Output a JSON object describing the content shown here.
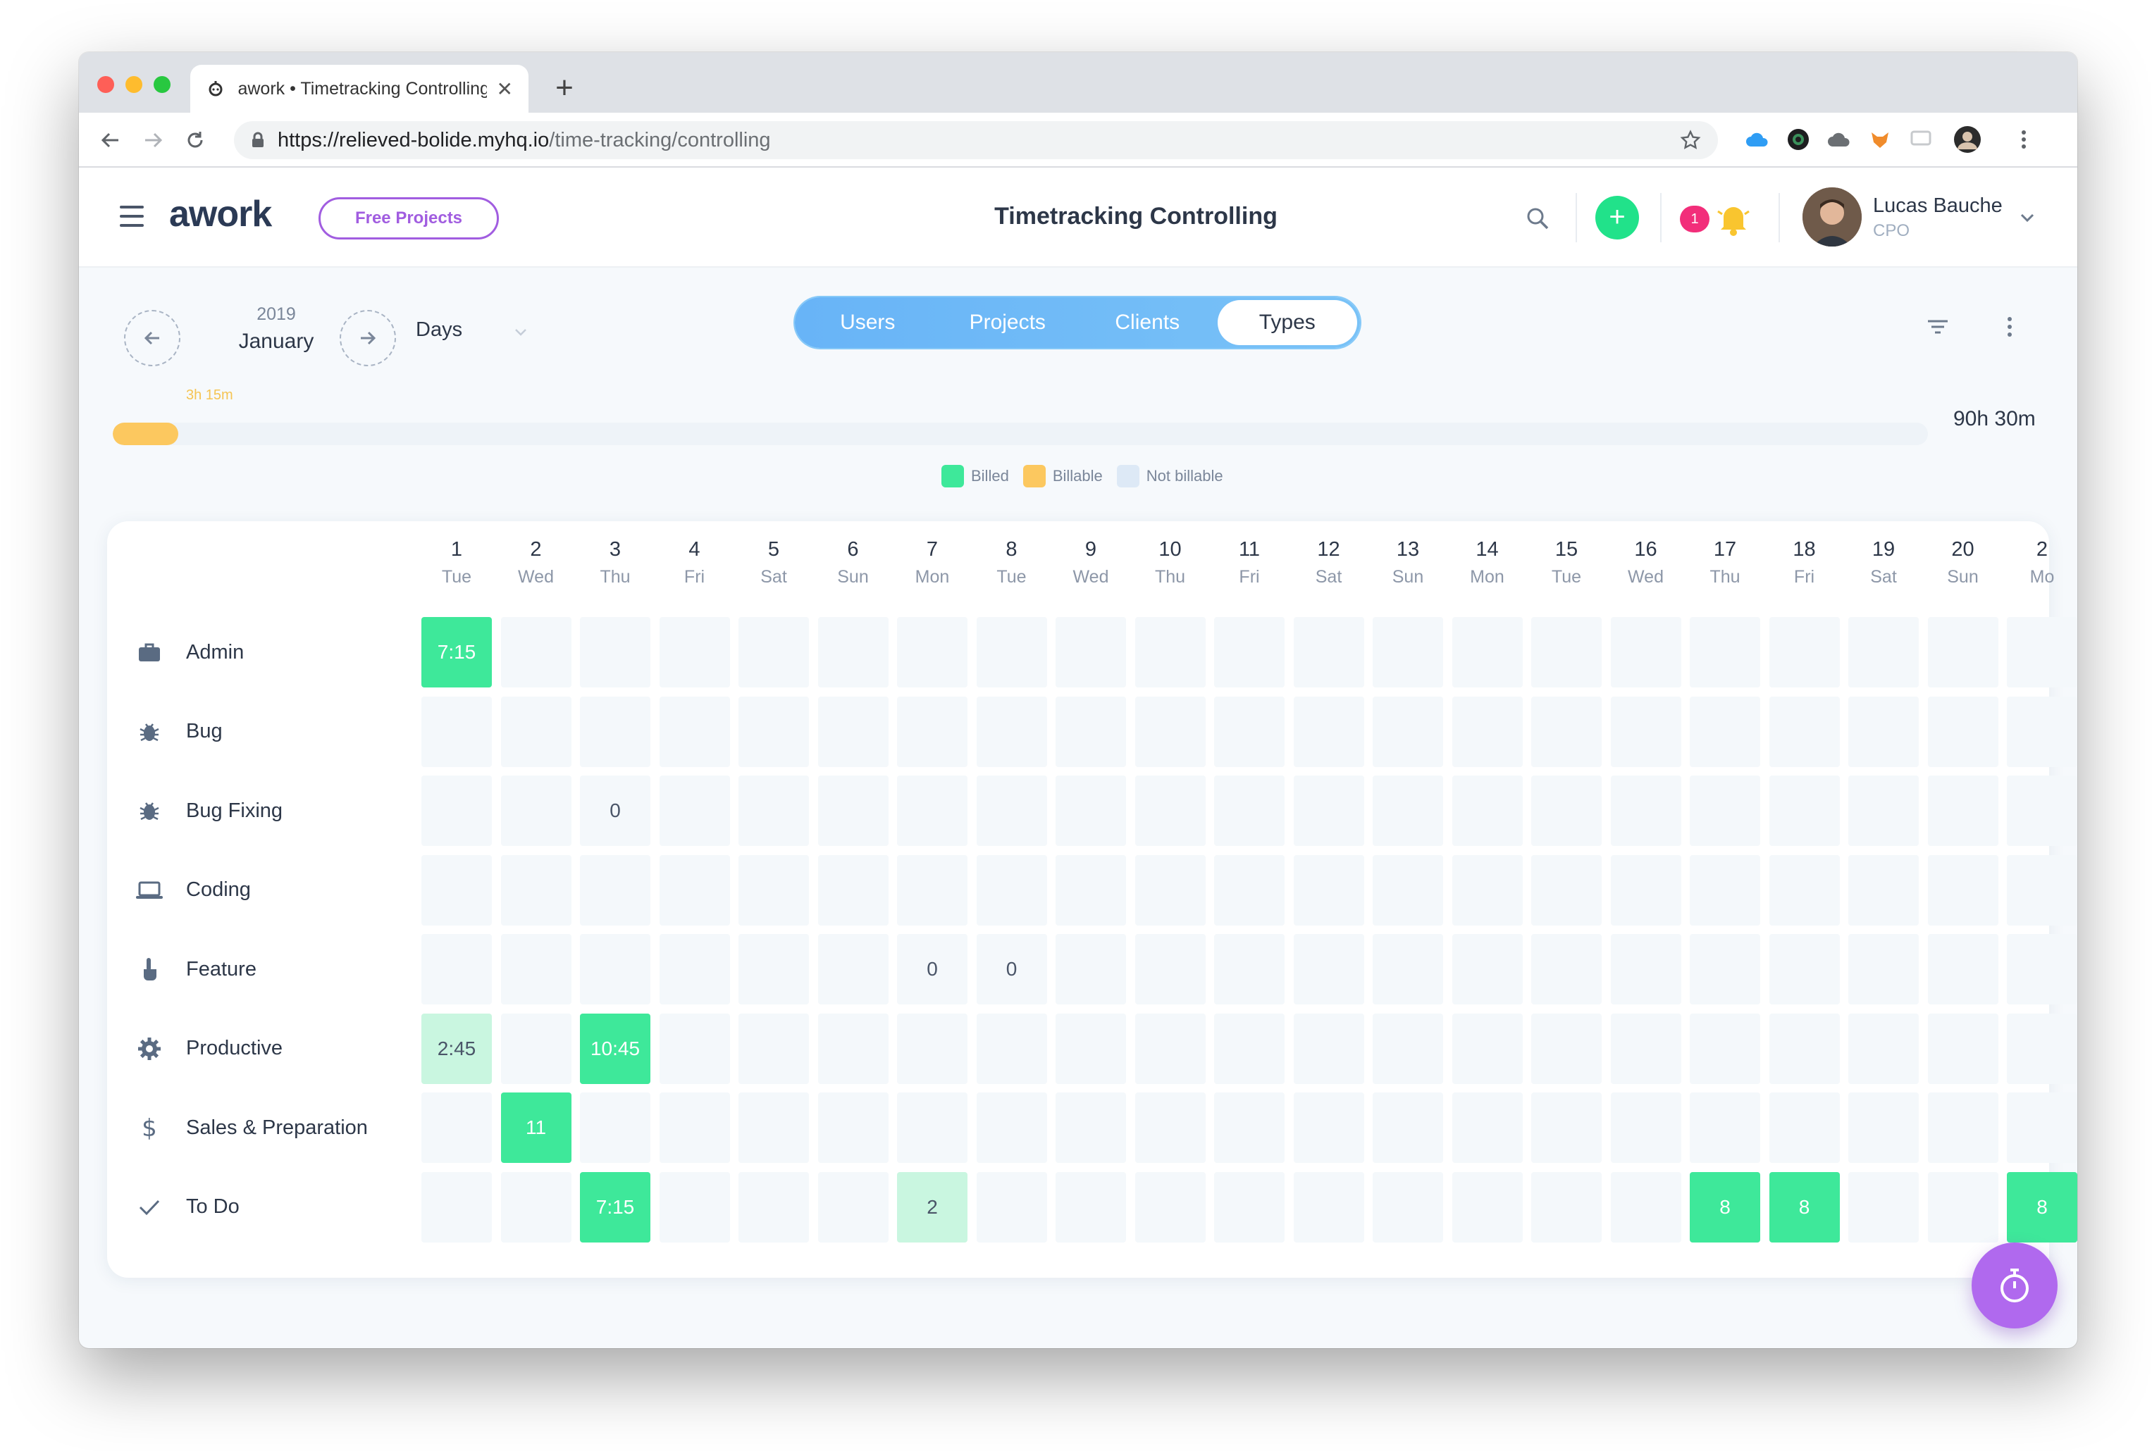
{
  "browser": {
    "tab_title": "awork • Timetracking Controlling",
    "new_tab": "+",
    "close_tab": "✕",
    "url_host": "https://relieved-bolide.myhq.io",
    "url_path": "/time-tracking/controlling"
  },
  "header": {
    "logo": "awork",
    "free_projects": "Free Projects",
    "title": "Timetracking Controlling",
    "add": "+",
    "notification_count": "1",
    "user_name": "Lucas Bauche",
    "user_role": "CPO"
  },
  "controls": {
    "year": "2019",
    "month": "January",
    "period": "Days",
    "tabs": [
      {
        "label": "Users",
        "active": false
      },
      {
        "label": "Projects",
        "active": false
      },
      {
        "label": "Clients",
        "active": false
      },
      {
        "label": "Types",
        "active": true
      }
    ]
  },
  "progress": {
    "label": "3h 15m",
    "fraction": 0.036,
    "total": "90h 30m"
  },
  "legend": [
    {
      "label": "Billed",
      "color": "#3ee89a"
    },
    {
      "label": "Billable",
      "color": "#fcc85f"
    },
    {
      "label": "Not billable",
      "color": "#dde9f6"
    }
  ],
  "grid": {
    "columns": [
      {
        "num": "1",
        "day": "Tue"
      },
      {
        "num": "2",
        "day": "Wed"
      },
      {
        "num": "3",
        "day": "Thu"
      },
      {
        "num": "4",
        "day": "Fri"
      },
      {
        "num": "5",
        "day": "Sat"
      },
      {
        "num": "6",
        "day": "Sun"
      },
      {
        "num": "7",
        "day": "Mon"
      },
      {
        "num": "8",
        "day": "Tue"
      },
      {
        "num": "9",
        "day": "Wed"
      },
      {
        "num": "10",
        "day": "Thu"
      },
      {
        "num": "11",
        "day": "Fri"
      },
      {
        "num": "12",
        "day": "Sat"
      },
      {
        "num": "13",
        "day": "Sun"
      },
      {
        "num": "14",
        "day": "Mon"
      },
      {
        "num": "15",
        "day": "Tue"
      },
      {
        "num": "16",
        "day": "Wed"
      },
      {
        "num": "17",
        "day": "Thu"
      },
      {
        "num": "18",
        "day": "Fri"
      },
      {
        "num": "19",
        "day": "Sat"
      },
      {
        "num": "20",
        "day": "Sun"
      },
      {
        "num": "2",
        "day": "Mo"
      }
    ],
    "rows": [
      {
        "label": "Admin",
        "icon": "briefcase-icon",
        "cells": {
          "0": {
            "v": "7:15",
            "s": "billed"
          }
        }
      },
      {
        "label": "Bug",
        "icon": "bug-icon",
        "cells": {}
      },
      {
        "label": "Bug Fixing",
        "icon": "bug-icon",
        "cells": {
          "2": {
            "v": "0",
            "s": "plain"
          }
        }
      },
      {
        "label": "Coding",
        "icon": "laptop-icon",
        "cells": {}
      },
      {
        "label": "Feature",
        "icon": "pointer-hand-icon",
        "cells": {
          "6": {
            "v": "0",
            "s": "plain"
          },
          "7": {
            "v": "0",
            "s": "plain"
          }
        }
      },
      {
        "label": "Productive",
        "icon": "gear-icon",
        "cells": {
          "0": {
            "v": "2:45",
            "s": "light"
          },
          "2": {
            "v": "10:45",
            "s": "billed"
          }
        }
      },
      {
        "label": "Sales & Preparation",
        "icon": "dollar-icon",
        "cells": {
          "1": {
            "v": "11",
            "s": "billed"
          }
        }
      },
      {
        "label": "To Do",
        "icon": "check-icon",
        "cells": {
          "2": {
            "v": "7:15",
            "s": "billed"
          },
          "6": {
            "v": "2",
            "s": "light"
          },
          "16": {
            "v": "8",
            "s": "billed"
          },
          "17": {
            "v": "8",
            "s": "billed"
          },
          "20": {
            "v": "8",
            "s": "billed"
          }
        }
      }
    ]
  }
}
